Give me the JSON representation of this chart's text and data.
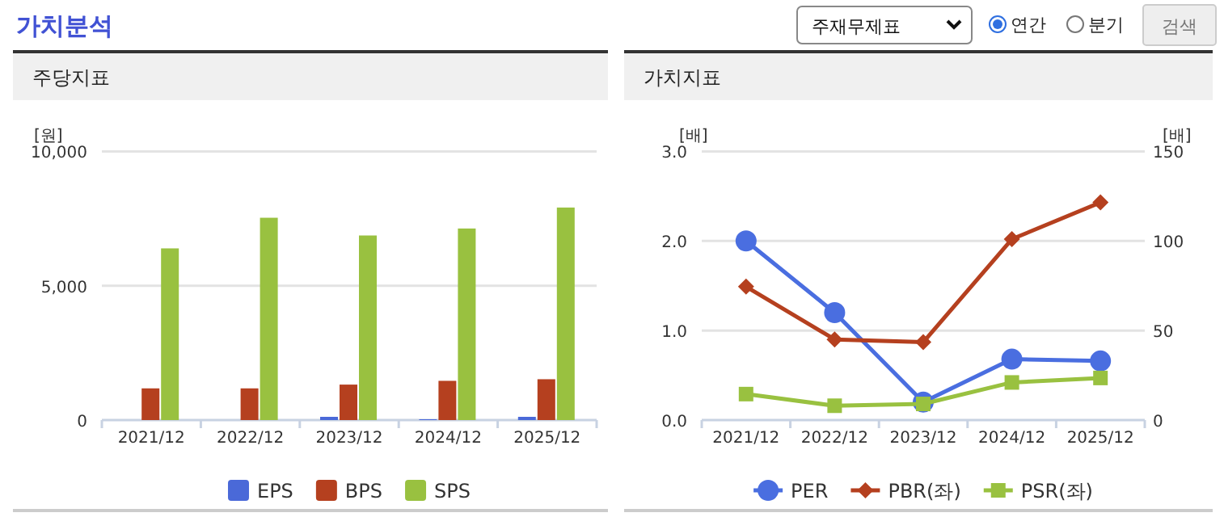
{
  "chart_data": [
    {
      "type": "other",
      "title": "가치분석",
      "annotations": [
        "주재무제표",
        "연간",
        "분기",
        "검색"
      ]
    },
    {
      "type": "bar",
      "title": "주당지표",
      "ylabel": "[원]",
      "categories": [
        "2021/12",
        "2022/12",
        "2023/12",
        "2024/12",
        "2025/12"
      ],
      "series": [
        {
          "name": "EPS",
          "color": "#4a69d8",
          "values": [
            0,
            0,
            120,
            30,
            120
          ]
        },
        {
          "name": "BPS",
          "color": "#b5401f",
          "values": [
            1180,
            1180,
            1320,
            1460,
            1520
          ]
        },
        {
          "name": "SPS",
          "color": "#99c140",
          "values": [
            6390,
            7530,
            6870,
            7130,
            7910
          ]
        }
      ],
      "ylim": [
        0,
        10000
      ],
      "yticks": [
        0,
        {
          "value": 5000,
          "label": "5,000"
        },
        {
          "value": 10000,
          "label": "10,000"
        }
      ],
      "grid": "y",
      "legend": "bottom"
    },
    {
      "type": "line",
      "title": "가치지표",
      "ylabel": "[배]",
      "y2label": "[배]",
      "categories": [
        "2021/12",
        "2022/12",
        "2023/12",
        "2024/12",
        "2025/12"
      ],
      "series": [
        {
          "name": "PER",
          "color": "#4a6ee0",
          "axis": "y2",
          "marker": "circle",
          "values": [
            100,
            60,
            10,
            34,
            33
          ]
        },
        {
          "name": "PBR(좌)",
          "color": "#b5401f",
          "marker": "diamond",
          "values": [
            1.49,
            0.9,
            0.87,
            2.02,
            2.43
          ]
        },
        {
          "name": "PSR(좌)",
          "color": "#99c140",
          "marker": "square",
          "values": [
            0.29,
            0.16,
            0.18,
            0.42,
            0.47
          ]
        }
      ],
      "ylim": [
        0,
        3
      ],
      "yticks": [
        {
          "value": 0,
          "label": "0.0"
        },
        {
          "value": 1,
          "label": "1.0"
        },
        {
          "value": 2,
          "label": "2.0"
        },
        {
          "value": 3,
          "label": "3.0"
        }
      ],
      "y2lim": [
        0,
        150
      ],
      "y2ticks": [
        0,
        50,
        100,
        150
      ],
      "grid": "y",
      "legend": "bottom"
    }
  ]
}
